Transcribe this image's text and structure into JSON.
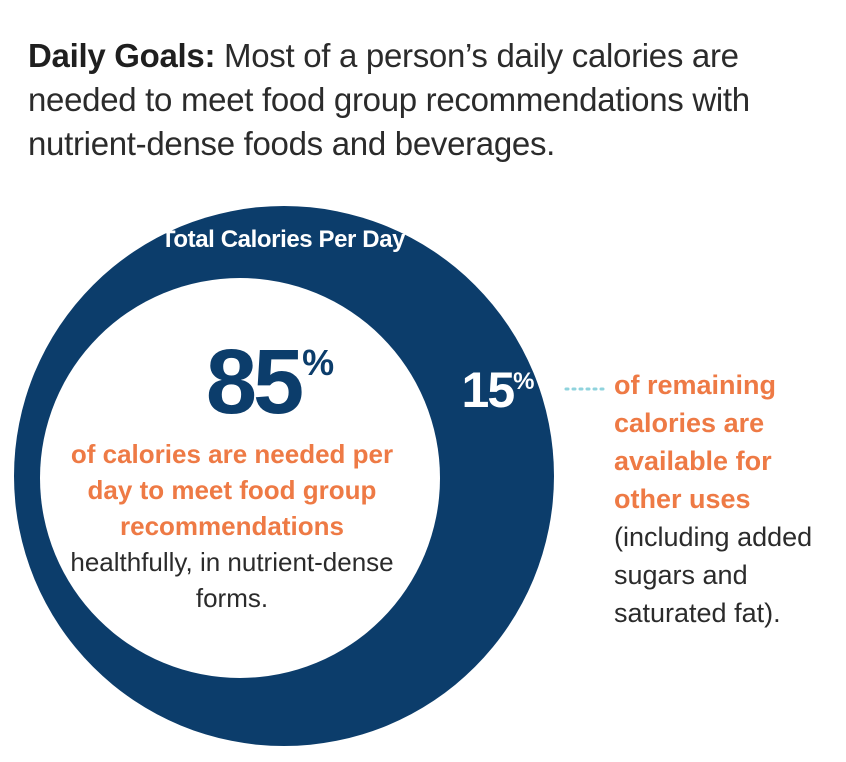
{
  "headline": {
    "lead": "Daily Goals:",
    "text": " Most of a person’s daily calories are needed to meet food group recommendations with nutrient-dense foods and beverages."
  },
  "circle_title": "Total Calories Per Day",
  "main_stat": {
    "value": "85",
    "unit": "%",
    "highlight": "of calories are needed per day to meet food group recommendations",
    "detail": " healthfully, in nutrient-dense forms."
  },
  "side_stat": {
    "value": "15",
    "unit": "%",
    "highlight": "of remaining calories are available for other uses",
    "detail": " (including added sugars and saturated fat)."
  },
  "colors": {
    "navy": "#0c3d6b",
    "orange": "#ee7a45",
    "connector": "#8fd3dd"
  }
}
